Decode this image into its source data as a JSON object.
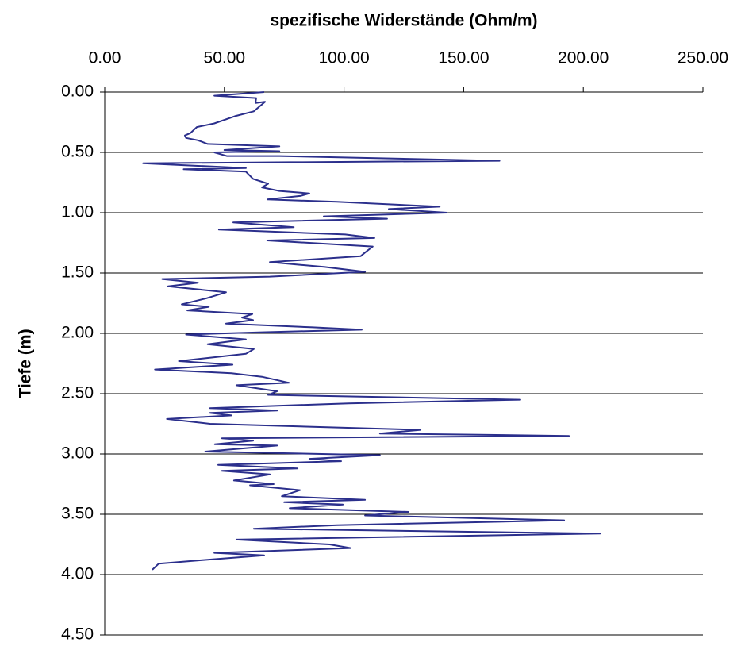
{
  "chart_data": {
    "type": "line",
    "title": "spezifische Widerstände (Ohm/m)",
    "ylabel": "Tiefe (m)",
    "color": "#2b2f8c",
    "xlim": [
      0,
      250
    ],
    "xticks": [
      {
        "value": 0,
        "label": "0.00"
      },
      {
        "value": 50,
        "label": "50.00"
      },
      {
        "value": 100,
        "label": "100.00"
      },
      {
        "value": 150,
        "label": "150.00"
      },
      {
        "value": 200,
        "label": "200.00"
      },
      {
        "value": 250,
        "label": "250.00"
      }
    ],
    "ylim": [
      0,
      4.5
    ],
    "y_inverted": true,
    "x_axis_position": "top",
    "grid": true,
    "yticks": [
      {
        "value": 0,
        "label": "0.00"
      },
      {
        "value": 0.5,
        "label": "0.50"
      },
      {
        "value": 1,
        "label": "1.00"
      },
      {
        "value": 1.5,
        "label": "1.50"
      },
      {
        "value": 2,
        "label": "2.00"
      },
      {
        "value": 2.5,
        "label": "2.50"
      },
      {
        "value": 3,
        "label": "3.00"
      },
      {
        "value": 3.5,
        "label": "3.50"
      },
      {
        "value": 4,
        "label": "4.00"
      },
      {
        "value": 4.5,
        "label": "4.50"
      }
    ],
    "x": [
      66.6,
      45.8,
      63.3,
      63,
      67,
      62.3,
      54.4,
      45.8,
      38.5,
      35.8,
      33.5,
      34,
      39,
      43,
      73,
      50,
      73,
      45.8,
      51,
      73,
      165,
      16,
      59,
      33,
      59,
      62,
      68.3,
      65.7,
      73,
      85.5,
      82,
      68,
      97,
      140,
      118.7,
      143,
      91.5,
      118,
      53.7,
      79,
      47.7,
      100.5,
      112.7,
      67.9,
      112,
      108.8,
      107,
      69,
      92,
      108.8,
      69,
      24,
      39,
      26.5,
      50.7,
      42.4,
      32.2,
      43.5,
      34.5,
      61.7,
      57.4,
      62,
      50.7,
      87,
      107.4,
      67.3,
      34,
      59,
      43,
      62.3,
      59,
      31,
      53.4,
      21,
      53,
      65.7,
      77,
      55,
      72,
      68.3,
      173.7,
      102,
      44,
      72,
      44,
      53,
      26,
      44,
      132,
      115,
      194,
      49,
      62,
      46,
      72,
      42,
      115,
      85.5,
      98.8,
      47.4,
      80.6,
      49,
      69,
      54,
      70.6,
      60.7,
      81.6,
      74,
      108.8,
      75,
      99.5,
      77.3,
      127,
      108.8,
      192,
      97,
      62.3,
      207,
      55,
      94,
      102.8,
      45.8,
      66.6,
      40.8,
      22.5,
      19.9
    ],
    "y": [
      0,
      0.03,
      0.05,
      0.09,
      0.08,
      0.16,
      0.2,
      0.26,
      0.29,
      0.34,
      0.36,
      0.38,
      0.4,
      0.43,
      0.45,
      0.48,
      0.49,
      0.5,
      0.53,
      0.53,
      0.57,
      0.59,
      0.63,
      0.64,
      0.66,
      0.72,
      0.76,
      0.79,
      0.82,
      0.84,
      0.86,
      0.89,
      0.91,
      0.95,
      0.97,
      1,
      1.03,
      1.05,
      1.08,
      1.12,
      1.14,
      1.18,
      1.21,
      1.23,
      1.28,
      1.33,
      1.36,
      1.41,
      1.45,
      1.49,
      1.53,
      1.55,
      1.58,
      1.61,
      1.66,
      1.71,
      1.76,
      1.78,
      1.81,
      1.84,
      1.87,
      1.89,
      1.92,
      1.95,
      1.97,
      1.99,
      2.01,
      2.05,
      2.09,
      2.13,
      2.17,
      2.23,
      2.26,
      2.3,
      2.33,
      2.36,
      2.41,
      2.43,
      2.48,
      2.51,
      2.55,
      2.58,
      2.62,
      2.64,
      2.66,
      2.68,
      2.71,
      2.75,
      2.8,
      2.83,
      2.85,
      2.87,
      2.89,
      2.92,
      2.93,
      2.98,
      3.01,
      3.04,
      3.06,
      3.09,
      3.12,
      3.14,
      3.17,
      3.22,
      3.25,
      3.26,
      3.3,
      3.35,
      3.38,
      3.4,
      3.42,
      3.45,
      3.48,
      3.51,
      3.55,
      3.59,
      3.62,
      3.66,
      3.71,
      3.75,
      3.78,
      3.82,
      3.84,
      3.88,
      3.91,
      3.96
    ]
  }
}
